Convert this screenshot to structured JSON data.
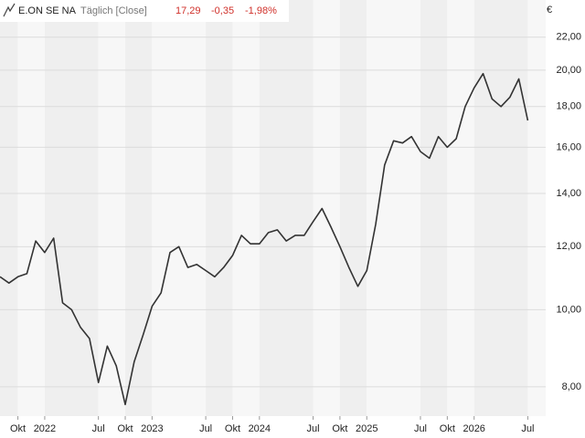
{
  "chart_data": {
    "type": "line",
    "instrument": "E.ON SE NA",
    "interval": "Täglich [Close]",
    "last": "17,29",
    "change": "-0,35",
    "change_pct": "-1,98%",
    "unit": "€",
    "x": [
      "2021-08",
      "2021-09",
      "2021-10",
      "2021-11",
      "2021-12",
      "2022-01",
      "2022-02",
      "2022-03",
      "2022-04",
      "2022-05",
      "2022-06",
      "2022-07",
      "2022-08",
      "2022-09",
      "2022-10",
      "2022-11",
      "2022-12",
      "2023-01",
      "2023-02",
      "2023-03",
      "2023-04",
      "2023-05",
      "2023-06",
      "2023-07",
      "2023-08",
      "2023-09",
      "2023-10",
      "2023-11",
      "2023-12",
      "2024-01",
      "2024-02",
      "2024-03",
      "2024-04",
      "2024-05",
      "2024-06",
      "2024-07",
      "2024-08",
      "2024-09",
      "2024-10",
      "2024-11",
      "2024-12",
      "2025-01",
      "2025-02",
      "2025-03",
      "2025-04",
      "2025-05",
      "2025-06",
      "2025-07",
      "2025-08",
      "2025-09",
      "2025-10",
      "2025-11",
      "2025-12",
      "2026-01",
      "2026-02",
      "2026-03",
      "2026-04",
      "2026-05",
      "2026-06",
      "2026-07"
    ],
    "series": [
      {
        "name": "E.ON SE NA",
        "color": "#333333",
        "values": [
          11.0,
          10.8,
          11.0,
          11.1,
          12.2,
          11.8,
          12.3,
          10.2,
          10.0,
          9.5,
          9.2,
          8.1,
          9.0,
          8.5,
          7.6,
          8.6,
          9.3,
          10.1,
          10.5,
          11.8,
          12.0,
          11.3,
          11.4,
          11.2,
          11.0,
          11.3,
          11.7,
          12.4,
          12.1,
          12.1,
          12.5,
          12.6,
          12.2,
          12.4,
          12.4,
          12.9,
          13.4,
          12.7,
          12.0,
          11.3,
          10.7,
          11.2,
          12.8,
          15.2,
          16.3,
          16.2,
          16.5,
          15.8,
          15.5,
          16.5,
          16.0,
          16.4,
          18.0,
          19.0,
          19.8,
          18.4,
          18.0,
          18.5,
          19.5,
          17.29
        ]
      }
    ],
    "xlim": [
      "2021-08",
      "2026-09"
    ],
    "xticks": [
      {
        "value": "2021-10",
        "label": "Okt"
      },
      {
        "value": "2022-01",
        "label": "2022"
      },
      {
        "value": "2022-07",
        "label": "Jul"
      },
      {
        "value": "2022-10",
        "label": "Okt"
      },
      {
        "value": "2023-01",
        "label": "2023"
      },
      {
        "value": "2023-07",
        "label": "Jul"
      },
      {
        "value": "2023-10",
        "label": "Okt"
      },
      {
        "value": "2024-01",
        "label": "2024"
      },
      {
        "value": "2024-07",
        "label": "Jul"
      },
      {
        "value": "2024-10",
        "label": "Okt"
      },
      {
        "value": "2025-01",
        "label": "2025"
      },
      {
        "value": "2025-07",
        "label": "Jul"
      },
      {
        "value": "2025-10",
        "label": "Okt"
      },
      {
        "value": "2026-01",
        "label": "2026"
      },
      {
        "value": "2026-07",
        "label": "Jul"
      }
    ],
    "ylim": [
      7.35,
      24.5
    ],
    "log_scale": true,
    "grid": true,
    "yticks": [
      {
        "value": 8,
        "label": "8,00"
      },
      {
        "value": 10,
        "label": "10,00"
      },
      {
        "value": 12,
        "label": "12,00"
      },
      {
        "value": 14,
        "label": "14,00"
      },
      {
        "value": 16,
        "label": "16,00"
      },
      {
        "value": 18,
        "label": "18,00"
      },
      {
        "value": 20,
        "label": "20,00"
      },
      {
        "value": 22,
        "label": "22,00"
      }
    ]
  }
}
